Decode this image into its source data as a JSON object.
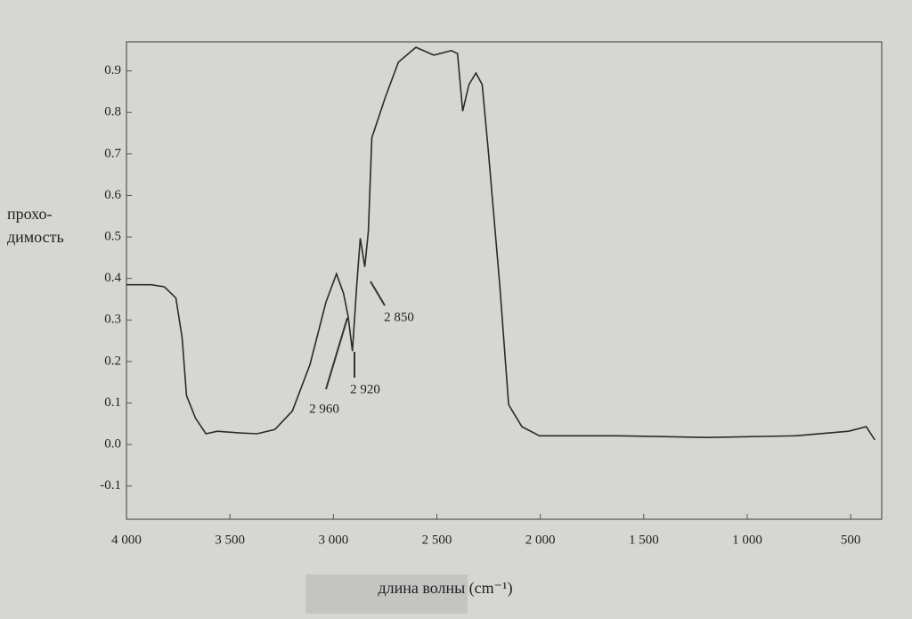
{
  "chart_data": {
    "type": "line",
    "ylabel": [
      "прохо-",
      "димость"
    ],
    "xlabel": "длина волны (cm⁻¹)",
    "xlim": [
      4000,
      350
    ],
    "ylim": [
      -0.18,
      0.97
    ],
    "xticks": [
      {
        "value": 4000,
        "label": "4 000"
      },
      {
        "value": 3500,
        "label": "3 500"
      },
      {
        "value": 3000,
        "label": "3 000"
      },
      {
        "value": 2500,
        "label": "2 500"
      },
      {
        "value": 2000,
        "label": "2 000"
      },
      {
        "value": 1500,
        "label": "1 500"
      },
      {
        "value": 1000,
        "label": "1 000"
      },
      500
    ],
    "yticks": [
      -0.1,
      {
        "value": 0,
        "label": "0.0"
      },
      0.1,
      0.2,
      0.3,
      0.4,
      0.5,
      0.6,
      0.7,
      0.8,
      0.9
    ],
    "series": [
      {
        "color": "#2a2a2a",
        "x": [
          4000,
          3881,
          3817,
          3761,
          3731,
          3710,
          3667,
          3616,
          3561,
          3454,
          3369,
          3283,
          3198,
          3113,
          3036,
          2985,
          2951,
          2929,
          2908,
          2887,
          2870,
          2848,
          2831,
          2814,
          2750,
          2686,
          2601,
          2515,
          2430,
          2400,
          2375,
          2345,
          2311,
          2281,
          2251,
          2196,
          2153,
          2089,
          2004,
          1620,
          1193,
          766,
          510,
          425,
          383
        ],
        "values": [
          0.385,
          0.385,
          0.38,
          0.353,
          0.257,
          0.118,
          0.064,
          0.026,
          0.032,
          0.028,
          0.026,
          0.036,
          0.081,
          0.193,
          0.343,
          0.411,
          0.364,
          0.31,
          0.225,
          0.385,
          0.497,
          0.428,
          0.514,
          0.739,
          0.835,
          0.921,
          0.957,
          0.938,
          0.949,
          0.942,
          0.803,
          0.867,
          0.895,
          0.867,
          0.707,
          0.385,
          0.096,
          0.043,
          0.021,
          0.021,
          0.017,
          0.021,
          0.032,
          0.043,
          0.011
        ]
      }
    ],
    "annotations": [
      "2 960",
      "2 920",
      "2 850"
    ]
  }
}
